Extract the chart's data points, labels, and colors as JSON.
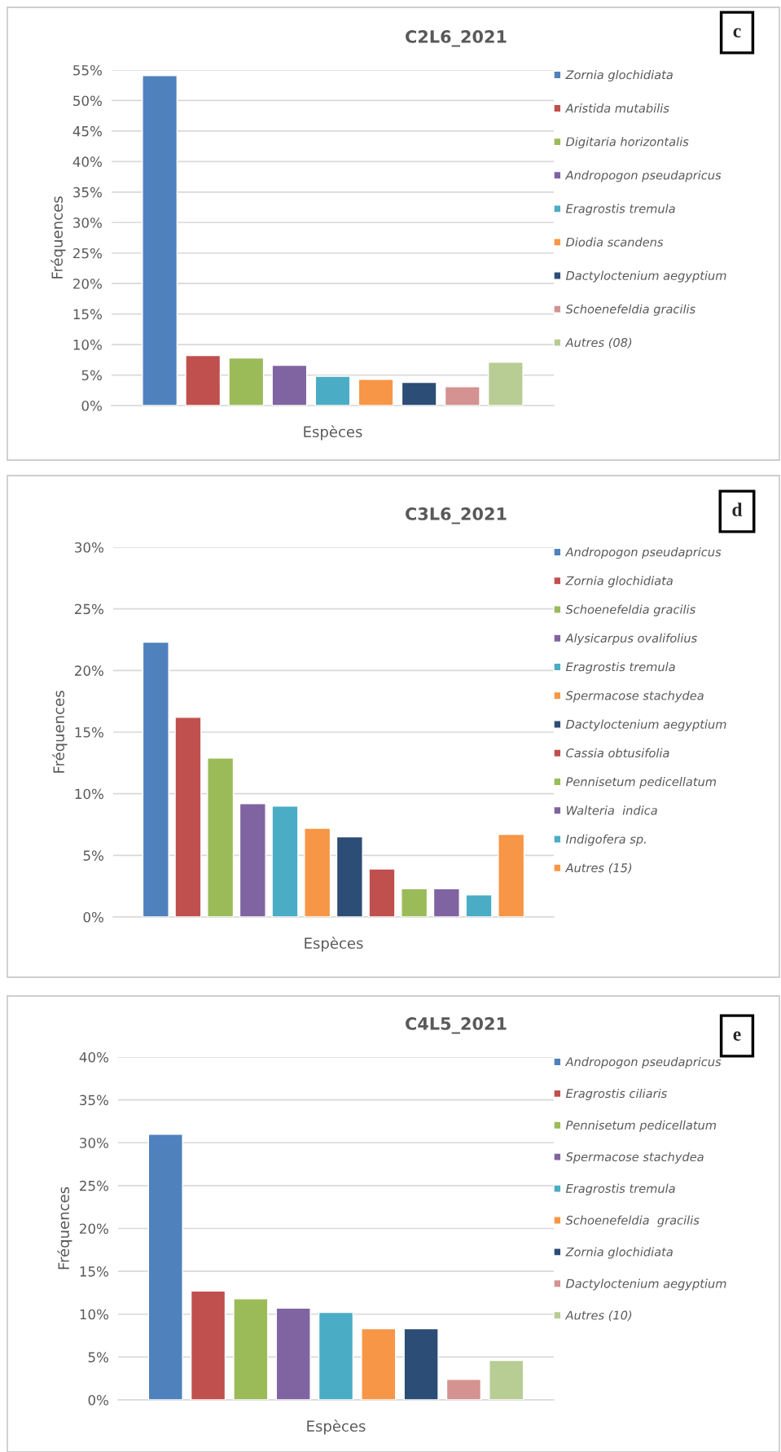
{
  "chart_data": [
    {
      "type": "bar",
      "title": "C2L6_2021",
      "xlabel": "Espèces",
      "ylabel": "Fréquences",
      "categories": [
        null
      ],
      "legend": "right",
      "grid": "y",
      "annotations": [
        "c"
      ],
      "ylim": [
        0,
        55
      ],
      "yticks": [
        {
          "value": 0,
          "label": "0%"
        },
        {
          "value": 5,
          "label": "5%"
        },
        {
          "value": 10,
          "label": "10%"
        },
        {
          "value": 15,
          "label": "15%"
        },
        {
          "value": 20,
          "label": "20%"
        },
        {
          "value": 25,
          "label": "25%"
        },
        {
          "value": 30,
          "label": "30%"
        },
        {
          "value": 35,
          "label": "35%"
        },
        {
          "value": 40,
          "label": "40%"
        },
        {
          "value": 45,
          "label": "45%"
        },
        {
          "value": 50,
          "label": "50%"
        },
        {
          "value": 55,
          "label": "55%"
        }
      ],
      "series": [
        {
          "name": "Zornia glochidiata",
          "color": "#4f81bd",
          "values": [
            54.1
          ]
        },
        {
          "name": "Aristida mutabilis",
          "color": "#c0504d",
          "values": [
            8.2
          ]
        },
        {
          "name": "Digitaria horizontalis",
          "color": "#9bbb59",
          "values": [
            7.8
          ]
        },
        {
          "name": "Andropogon pseudapricus",
          "color": "#8064a2",
          "values": [
            6.6
          ]
        },
        {
          "name": "Eragrostis tremula",
          "color": "#4bacc6",
          "values": [
            4.8
          ]
        },
        {
          "name": "Diodia scandens",
          "color": "#f79646",
          "values": [
            4.3
          ]
        },
        {
          "name": "Dactyloctenium aegyptium",
          "color": "#2c4d75",
          "values": [
            3.8
          ]
        },
        {
          "name": "Schoenefeldia gracilis",
          "color": "#d49290",
          "values": [
            3.1
          ]
        },
        {
          "name": "Autres (08)",
          "color": "#b7cd94",
          "values": [
            7.1
          ]
        }
      ]
    },
    {
      "type": "bar",
      "title": "C3L6_2021",
      "xlabel": "Espèces",
      "ylabel": "Fréquences",
      "categories": [
        null
      ],
      "legend": "right",
      "grid": "y",
      "annotations": [
        "d"
      ],
      "ylim": [
        0,
        30
      ],
      "yticks": [
        {
          "value": 0,
          "label": "0%"
        },
        {
          "value": 5,
          "label": "5%"
        },
        {
          "value": 10,
          "label": "10%"
        },
        {
          "value": 15,
          "label": "15%"
        },
        {
          "value": 20,
          "label": "20%"
        },
        {
          "value": 25,
          "label": "25%"
        },
        {
          "value": 30,
          "label": "30%"
        }
      ],
      "series": [
        {
          "name": "Andropogon pseudapricus",
          "color": "#4f81bd",
          "values": [
            22.3
          ]
        },
        {
          "name": "Zornia glochidiata",
          "color": "#c0504d",
          "values": [
            16.2
          ]
        },
        {
          "name": "Schoenefeldia gracilis",
          "color": "#9bbb59",
          "values": [
            12.9
          ]
        },
        {
          "name": "Alysicarpus ovalifolius",
          "color": "#8064a2",
          "values": [
            9.2
          ]
        },
        {
          "name": "Eragrostis tremula",
          "color": "#4bacc6",
          "values": [
            9.0
          ]
        },
        {
          "name": "Spermacose stachydea",
          "color": "#f79646",
          "values": [
            7.2
          ]
        },
        {
          "name": "Dactyloctenium aegyptium",
          "color": "#2c4d75",
          "values": [
            6.5
          ]
        },
        {
          "name": "Cassia obtusifolia",
          "color": "#c0504d",
          "values": [
            3.9
          ]
        },
        {
          "name": "Pennisetum pedicellatum",
          "color": "#9bbb59",
          "values": [
            2.3
          ]
        },
        {
          "name": "Walteria  indica",
          "color": "#8064a2",
          "values": [
            2.3
          ]
        },
        {
          "name": "Indigofera sp.",
          "color": "#4bacc6",
          "values": [
            1.8
          ]
        },
        {
          "name": "Autres (15)",
          "color": "#f79646",
          "values": [
            6.7
          ]
        }
      ]
    },
    {
      "type": "bar",
      "title": "C4L5_2021",
      "xlabel": "Espèces",
      "ylabel": "Fréquences",
      "categories": [
        null
      ],
      "legend": "right",
      "grid": "y",
      "annotations": [
        "e"
      ],
      "ylim": [
        0,
        40
      ],
      "yticks": [
        {
          "value": 0,
          "label": "0%"
        },
        {
          "value": 5,
          "label": "5%"
        },
        {
          "value": 10,
          "label": "10%"
        },
        {
          "value": 15,
          "label": "15%"
        },
        {
          "value": 20,
          "label": "20%"
        },
        {
          "value": 25,
          "label": "25%"
        },
        {
          "value": 30,
          "label": "30%"
        },
        {
          "value": 35,
          "label": "35%"
        },
        {
          "value": 40,
          "label": "40%"
        }
      ],
      "series": [
        {
          "name": "Andropogon pseudapricus",
          "color": "#4f81bd",
          "values": [
            31.0
          ]
        },
        {
          "name": "Eragrostis ciliaris",
          "color": "#c0504d",
          "values": [
            12.7
          ]
        },
        {
          "name": "Pennisetum pedicellatum",
          "color": "#9bbb59",
          "values": [
            11.8
          ]
        },
        {
          "name": "Spermacose stachydea",
          "color": "#8064a2",
          "values": [
            10.7
          ]
        },
        {
          "name": "Eragrostis tremula",
          "color": "#4bacc6",
          "values": [
            10.2
          ]
        },
        {
          "name": "Schoenefeldia  gracilis",
          "color": "#f79646",
          "values": [
            8.3
          ]
        },
        {
          "name": "Zornia glochidiata",
          "color": "#2c4d75",
          "values": [
            8.3
          ]
        },
        {
          "name": "Dactyloctenium aegyptium",
          "color": "#d49290",
          "values": [
            2.4
          ]
        },
        {
          "name": "Autres (10)",
          "color": "#b7cd94",
          "values": [
            4.6
          ]
        }
      ]
    }
  ]
}
